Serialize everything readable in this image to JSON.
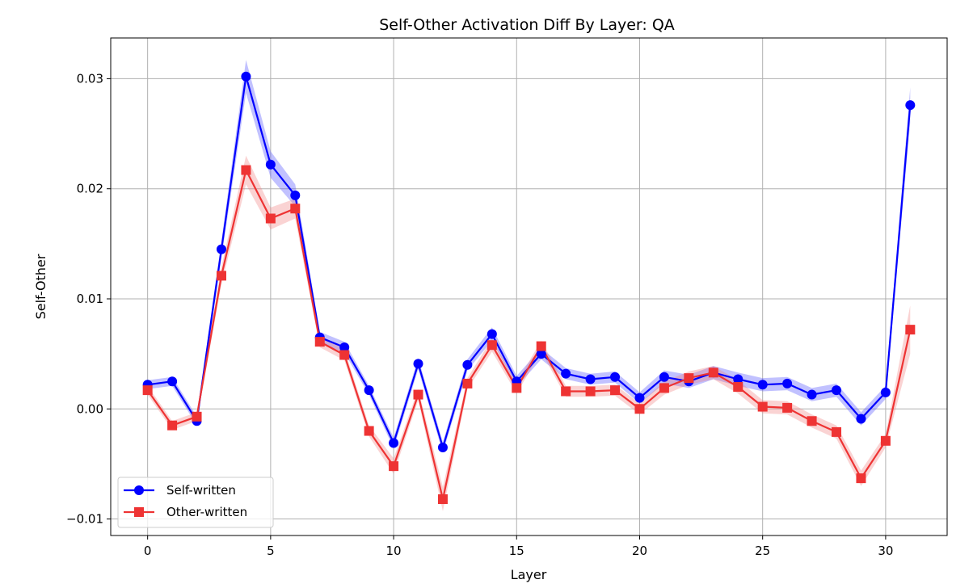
{
  "chart_data": {
    "type": "line",
    "title": "Self-Other Activation Diff By Layer: QA",
    "xlabel": "Layer",
    "ylabel": "Self-Other",
    "xlim": [
      -1.5,
      32.5
    ],
    "ylim": [
      -0.0115,
      0.0337
    ],
    "xticks": [
      0,
      5,
      10,
      15,
      20,
      25,
      30
    ],
    "yticks": [
      -0.01,
      0.0,
      0.01,
      0.02,
      0.03
    ],
    "ytick_labels": [
      "−0.01",
      "0.00",
      "0.01",
      "0.02",
      "0.03"
    ],
    "grid": true,
    "legend_position": "lower-left",
    "x": [
      0,
      1,
      2,
      3,
      4,
      5,
      6,
      7,
      8,
      9,
      10,
      11,
      12,
      13,
      14,
      15,
      16,
      17,
      18,
      19,
      20,
      21,
      22,
      23,
      24,
      25,
      26,
      27,
      28,
      29,
      30,
      31
    ],
    "series": [
      {
        "name": "Self-written",
        "color": "#0000ff",
        "band_color": "#4d4dff",
        "marker": "circle",
        "values": [
          0.0022,
          0.0025,
          -0.0011,
          0.0145,
          0.0302,
          0.0222,
          0.0194,
          0.0065,
          0.0056,
          0.0017,
          -0.0031,
          0.0041,
          -0.0035,
          0.004,
          0.0068,
          0.0025,
          0.005,
          0.0032,
          0.0027,
          0.0029,
          0.001,
          0.0029,
          0.0025,
          0.0033,
          0.0027,
          0.0022,
          0.0023,
          0.0013,
          0.0017,
          -0.0009,
          0.0015,
          0.0276
        ],
        "errors": [
          0.0004,
          0.0004,
          0.0004,
          0.0008,
          0.0015,
          0.0012,
          0.001,
          0.0005,
          0.0005,
          0.0004,
          0.0005,
          0.0005,
          0.0005,
          0.0005,
          0.0006,
          0.0005,
          0.0005,
          0.0005,
          0.0005,
          0.0005,
          0.0005,
          0.0006,
          0.0006,
          0.0006,
          0.0006,
          0.0006,
          0.0006,
          0.0006,
          0.0006,
          0.0006,
          0.0006,
          0.0016
        ]
      },
      {
        "name": "Other-written",
        "color": "#ee3333",
        "band_color": "#f08080",
        "marker": "square",
        "values": [
          0.0017,
          -0.0015,
          -0.0007,
          0.0121,
          0.0217,
          0.0173,
          0.0182,
          0.0061,
          0.0049,
          -0.002,
          -0.0052,
          0.0013,
          -0.0082,
          0.0023,
          0.0058,
          0.0019,
          0.0057,
          0.0016,
          0.0016,
          0.0017,
          0.0,
          0.0019,
          0.0028,
          0.0033,
          0.002,
          0.0002,
          0.0001,
          -0.0011,
          -0.0021,
          -0.0063,
          -0.0029,
          0.0072
        ],
        "errors": [
          0.0004,
          0.0004,
          0.0004,
          0.0008,
          0.0013,
          0.001,
          0.0009,
          0.0005,
          0.0005,
          0.0005,
          0.0007,
          0.0005,
          0.0011,
          0.0005,
          0.0006,
          0.0005,
          0.0005,
          0.0005,
          0.0005,
          0.0005,
          0.0005,
          0.0006,
          0.0006,
          0.0006,
          0.0006,
          0.0006,
          0.0006,
          0.0006,
          0.0006,
          0.0007,
          0.0006,
          0.0022
        ]
      }
    ]
  }
}
